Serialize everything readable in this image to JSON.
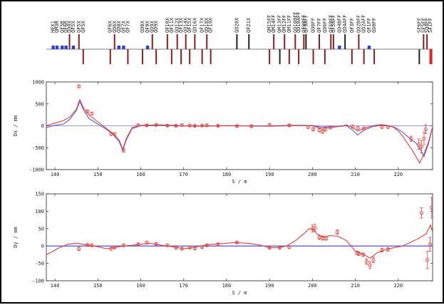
{
  "lattice": {
    "elements": [
      {
        "name": "HEX1",
        "s": 139.6,
        "kind": "blue",
        "dir": "up"
      },
      {
        "name": "QM3R",
        "s": 140.5,
        "kind": "blue",
        "dir": "up"
      },
      {
        "name": "QF5R",
        "s": 141.7,
        "kind": "blue",
        "dir": "up"
      },
      {
        "name": "QF6R",
        "s": 142.6,
        "kind": "blue",
        "dir": "up"
      },
      {
        "name": "QD4X",
        "s": 143.4,
        "kind": "red",
        "dir": "up"
      },
      {
        "name": "QF5X",
        "s": 144.3,
        "kind": "blue",
        "dir": "up"
      },
      {
        "name": "QF5X",
        "s": 145.6,
        "kind": "red",
        "dir": "up"
      },
      {
        "name": "QF5X",
        "s": 146.6,
        "kind": "red",
        "dir": "down"
      },
      {
        "name": "QF6X",
        "s": 152.9,
        "kind": "red",
        "dir": "down"
      },
      {
        "name": "QD6X",
        "s": 153.9,
        "kind": "red",
        "dir": "up"
      },
      {
        "name": "QD8X",
        "s": 154.9,
        "kind": "blue",
        "dir": "up"
      },
      {
        "name": "QF7X",
        "s": 156.0,
        "kind": "blue",
        "dir": "up"
      },
      {
        "name": "QF7X",
        "s": 157.0,
        "kind": "red",
        "dir": "down"
      },
      {
        "name": "QD8X",
        "s": 160.4,
        "kind": "red",
        "dir": "down"
      },
      {
        "name": "QF9X",
        "s": 161.6,
        "kind": "blue",
        "dir": "up"
      },
      {
        "name": "QD9X",
        "s": 162.7,
        "kind": "red",
        "dir": "up"
      },
      {
        "name": "QD9X",
        "s": 163.6,
        "kind": "red",
        "dir": "down"
      },
      {
        "name": "QF10X",
        "s": 166.2,
        "kind": "red",
        "dir": "up"
      },
      {
        "name": "QF11X",
        "s": 167.2,
        "kind": "red",
        "dir": "down"
      },
      {
        "name": "QD12X",
        "s": 168.5,
        "kind": "red",
        "dir": "up"
      },
      {
        "name": "QF13X",
        "s": 169.4,
        "kind": "red",
        "dir": "down"
      },
      {
        "name": "QD14X",
        "s": 170.5,
        "kind": "red",
        "dir": "up"
      },
      {
        "name": "QF15X",
        "s": 171.4,
        "kind": "red",
        "dir": "down"
      },
      {
        "name": "QD16X",
        "s": 172.6,
        "kind": "red",
        "dir": "up"
      },
      {
        "name": "QF17X",
        "s": 174.3,
        "kind": "red",
        "dir": "down"
      },
      {
        "name": "QD18X",
        "s": 175.4,
        "kind": "red",
        "dir": "up"
      },
      {
        "name": "QF19X",
        "s": 176.3,
        "kind": "red",
        "dir": "down"
      },
      {
        "name": "QD20X",
        "s": 182.4,
        "kind": "black",
        "dir": "up"
      },
      {
        "name": "QF21X",
        "s": 185.2,
        "kind": "black",
        "dir": "up"
      },
      {
        "name": "QM15FF",
        "s": 190.0,
        "kind": "red",
        "dir": "down"
      },
      {
        "name": "QM14FF",
        "s": 191.0,
        "kind": "red",
        "dir": "up"
      },
      {
        "name": "QM13FF",
        "s": 192.4,
        "kind": "black",
        "dir": "down"
      },
      {
        "name": "QM12FF",
        "s": 193.5,
        "kind": "red",
        "dir": "up"
      },
      {
        "name": "QM11FF",
        "s": 194.6,
        "kind": "red",
        "dir": "down"
      },
      {
        "name": "QD10BFF",
        "s": 196.0,
        "kind": "red",
        "dir": "up"
      },
      {
        "name": "QD10AFF",
        "s": 196.8,
        "kind": "red",
        "dir": "down"
      },
      {
        "name": "QF9BFF",
        "s": 198.0,
        "kind": "red",
        "dir": "up"
      },
      {
        "name": "QF9AFF",
        "s": 198.5,
        "kind": "black",
        "dir": "up"
      },
      {
        "name": "QD8FF",
        "s": 200.2,
        "kind": "red",
        "dir": "down"
      },
      {
        "name": "QF7FF",
        "s": 201.6,
        "kind": "red",
        "dir": "up"
      },
      {
        "name": "QD6FF",
        "s": 202.9,
        "kind": "red",
        "dir": "down"
      },
      {
        "name": "QF5BFF",
        "s": 204.3,
        "kind": "red",
        "dir": "up"
      },
      {
        "name": "QF5AFF",
        "s": 204.9,
        "kind": "red",
        "dir": "up"
      },
      {
        "name": "QD4BFF",
        "s": 206.3,
        "kind": "blue",
        "dir": "up"
      },
      {
        "name": "QD4AFF",
        "s": 207.6,
        "kind": "black",
        "dir": "up"
      },
      {
        "name": "QF3FF",
        "s": 209.2,
        "kind": "red",
        "dir": "down"
      },
      {
        "name": "QD2BFF",
        "s": 210.8,
        "kind": "red",
        "dir": "up"
      },
      {
        "name": "QD2AFF",
        "s": 212.0,
        "kind": "red",
        "dir": "down"
      },
      {
        "name": "QF1FF",
        "s": 213.2,
        "kind": "blue",
        "dir": "up"
      },
      {
        "name": "QD0FF",
        "s": 214.4,
        "kind": "red",
        "dir": "down"
      },
      {
        "name": "SF6FF",
        "s": 224.9,
        "kind": "black",
        "dir": "down"
      },
      {
        "name": "SF5FF",
        "s": 225.9,
        "kind": "red",
        "dir": "up"
      },
      {
        "name": "SD4FF",
        "s": 226.7,
        "kind": "red",
        "dir": "up"
      },
      {
        "name": "SF1FF",
        "s": 227.5,
        "kind": "red",
        "dir": "down"
      }
    ]
  },
  "chart_data": [
    {
      "type": "line",
      "title": "",
      "xlabel": "S / m",
      "ylabel": "Dx / mm",
      "xlim": [
        138,
        228
      ],
      "ylim": [
        -1000,
        1000
      ],
      "xticks": [
        140,
        150,
        160,
        170,
        180,
        190,
        200,
        210,
        220
      ],
      "yticks": [
        1000,
        500,
        0,
        -500,
        -1000
      ],
      "grid": false,
      "colors": {
        "model": "#5b5bd6",
        "measured": "#e8403a",
        "zero": "#3a3ae0"
      },
      "series": [
        {
          "role": "model",
          "x": [
            138,
            140,
            142,
            143.5,
            145,
            145.8,
            146.6,
            148,
            150,
            152,
            153.5,
            155,
            155.8,
            156.6,
            158,
            160,
            165,
            170,
            175,
            180,
            185,
            190,
            195,
            198,
            200,
            202,
            204,
            206,
            208,
            209.5,
            210.5,
            212,
            214,
            216,
            218,
            219,
            220,
            221,
            222,
            223,
            224,
            225,
            226,
            227,
            228
          ],
          "y": [
            -40,
            10,
            40,
            150,
            350,
            560,
            370,
            160,
            40,
            -80,
            -190,
            -370,
            -560,
            -330,
            -60,
            0,
            10,
            -5,
            -10,
            0,
            -5,
            -10,
            0,
            0,
            10,
            -30,
            -20,
            -20,
            0,
            -110,
            -210,
            -100,
            -20,
            10,
            -10,
            -30,
            -80,
            -150,
            -230,
            -310,
            -380,
            -510,
            -700,
            -420,
            -30
          ]
        },
        {
          "role": "measured",
          "x": [
            138,
            140,
            142,
            143.5,
            145,
            145.8,
            146.6,
            148,
            150,
            152,
            153.5,
            155,
            155.8,
            156.6,
            158,
            160,
            165,
            170,
            175,
            180,
            185,
            190,
            195,
            198,
            200,
            202,
            204,
            206,
            208,
            209.5,
            210.5,
            212,
            214,
            216,
            218,
            219,
            220,
            221,
            222,
            223,
            224,
            225,
            226,
            227,
            228
          ],
          "y": [
            0,
            60,
            120,
            200,
            380,
            600,
            420,
            240,
            90,
            -60,
            -170,
            -330,
            -540,
            -300,
            -40,
            10,
            20,
            0,
            -5,
            5,
            0,
            0,
            10,
            10,
            0,
            -60,
            -40,
            -20,
            20,
            -50,
            -120,
            -60,
            0,
            30,
            0,
            -40,
            -120,
            -230,
            -380,
            -520,
            -680,
            -850,
            -640,
            -380,
            -20
          ]
        },
        {
          "role": "points",
          "x": [
            145.6,
            147.6,
            148.6,
            153.1,
            153.9,
            156.0,
            159.4,
            161.4,
            163.6,
            166.2,
            168.2,
            169.6,
            171.4,
            172.6,
            174.3,
            175.4,
            178.0,
            182.4,
            185.8,
            190.0,
            194.6,
            199.0,
            200.2,
            201.6,
            202.4,
            203.0,
            204.2,
            209.4,
            210.6,
            212.0,
            216.2,
            217.6,
            223.0,
            224.8,
            225.4,
            226.0,
            226.4
          ],
          "y": [
            900,
            330,
            280,
            -190,
            -190,
            -560,
            15,
            10,
            20,
            5,
            0,
            15,
            5,
            0,
            5,
            10,
            0,
            -5,
            -10,
            20,
            10,
            -30,
            -80,
            -100,
            -130,
            -80,
            -40,
            -20,
            -50,
            -60,
            -30,
            -30,
            -300,
            -420,
            -480,
            -290,
            -80
          ],
          "err": [
            30,
            30,
            30,
            30,
            30,
            40,
            20,
            20,
            20,
            20,
            20,
            20,
            20,
            20,
            20,
            20,
            20,
            20,
            20,
            20,
            20,
            30,
            40,
            40,
            40,
            40,
            30,
            30,
            30,
            30,
            30,
            30,
            60,
            120,
            140,
            140,
            100
          ]
        }
      ]
    },
    {
      "type": "line",
      "title": "",
      "xlabel": "S / m",
      "ylabel": "Dy / mm",
      "xlim": [
        138,
        228
      ],
      "ylim": [
        -100,
        150
      ],
      "xticks": [
        140,
        150,
        160,
        170,
        180,
        190,
        200,
        210,
        220
      ],
      "yticks": [
        150,
        100,
        50,
        0,
        -50,
        -100
      ],
      "grid": false,
      "colors": {
        "model": "#3a3ae0",
        "measured": "#e8403a"
      },
      "series": [
        {
          "role": "model",
          "x": [
            138,
            228
          ],
          "y": [
            0,
            0
          ]
        },
        {
          "role": "measured",
          "x": [
            138,
            139.6,
            141,
            143,
            145,
            146.5,
            148,
            150,
            152,
            154,
            156,
            158,
            160,
            162,
            165,
            168,
            170,
            172,
            174,
            176,
            178,
            180,
            182,
            185,
            188,
            190,
            192,
            194,
            196,
            198,
            199.2,
            200.2,
            201,
            202.5,
            204,
            206,
            208,
            210,
            212,
            213.5,
            215,
            217,
            219,
            221,
            224.5,
            226.5,
            227.5,
            228
          ],
          "y": [
            -25,
            -15,
            -5,
            5,
            8,
            5,
            2,
            -2,
            -8,
            -4,
            0,
            2,
            5,
            8,
            2,
            -3,
            -8,
            -5,
            0,
            4,
            6,
            8,
            10,
            8,
            2,
            -5,
            -5,
            0,
            15,
            35,
            50,
            48,
            35,
            25,
            30,
            28,
            15,
            -15,
            -25,
            -35,
            -20,
            -10,
            -5,
            0,
            20,
            35,
            60,
            40
          ]
        },
        {
          "role": "points",
          "x": [
            145.6,
            147.6,
            148.6,
            153.1,
            153.9,
            156.0,
            159.4,
            161.4,
            163.6,
            166.2,
            168.2,
            169.6,
            171.4,
            172.6,
            174.3,
            175.4,
            178.0,
            182.4,
            190.0,
            192.4,
            194.6,
            200.0,
            200.6,
            201.6,
            202.4,
            203.2,
            205.8,
            210.4,
            210.8,
            211.8,
            212.6,
            213.4,
            214.2,
            216.2,
            217.6,
            225.4,
            226.8,
            227.4,
            227.8
          ],
          "y": [
            -8,
            3,
            2,
            -8,
            -4,
            2,
            5,
            10,
            6,
            2,
            -5,
            -8,
            -4,
            -7,
            -3,
            2,
            5,
            10,
            -5,
            -5,
            -3,
            50,
            52,
            25,
            23,
            22,
            40,
            -20,
            -22,
            -25,
            -45,
            -55,
            -40,
            -12,
            -10,
            95,
            -40,
            5,
            110
          ],
          "err": [
            5,
            3,
            3,
            4,
            3,
            3,
            3,
            4,
            3,
            3,
            3,
            3,
            3,
            3,
            3,
            3,
            3,
            3,
            3,
            3,
            3,
            10,
            10,
            6,
            6,
            5,
            6,
            5,
            5,
            5,
            8,
            10,
            8,
            5,
            5,
            15,
            25,
            20,
            30
          ]
        }
      ]
    }
  ]
}
